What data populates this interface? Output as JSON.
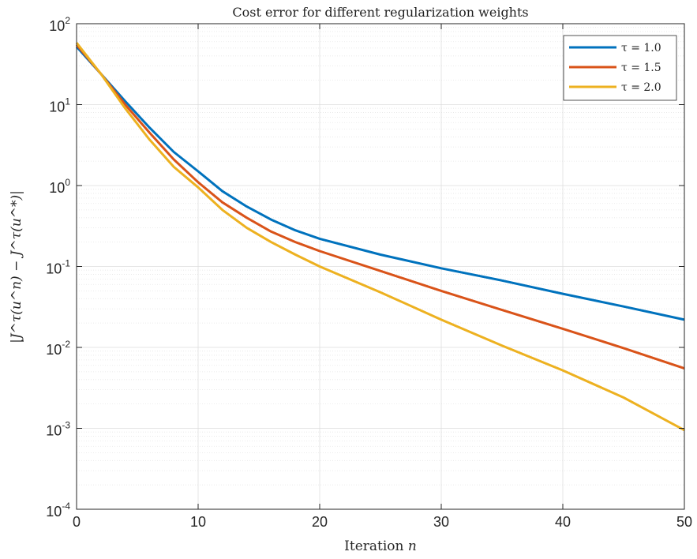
{
  "chart_data": {
    "type": "line",
    "title": "Cost error for different regularization weights",
    "xlabel": "Iteration n",
    "ylabel": "|J^τ(u^n) − J^τ(u^*)|",
    "xlim": [
      0,
      50
    ],
    "ylim": [
      0.0001,
      100
    ],
    "yscale": "log",
    "grid": true,
    "minor_grid": true,
    "legend_position": "top-right",
    "x_ticks": [
      "0",
      "10",
      "20",
      "30",
      "40",
      "50"
    ],
    "y_ticks": [
      {
        "base": "10",
        "exp": "2"
      },
      {
        "base": "10",
        "exp": "1"
      },
      {
        "base": "10",
        "exp": "0"
      },
      {
        "base": "10",
        "exp": "-1"
      },
      {
        "base": "10",
        "exp": "-2"
      },
      {
        "base": "10",
        "exp": "-3"
      },
      {
        "base": "10",
        "exp": "-4"
      }
    ],
    "x": [
      0,
      2,
      4,
      6,
      8,
      10,
      12,
      14,
      16,
      18,
      20,
      25,
      30,
      35,
      40,
      45,
      50
    ],
    "series": [
      {
        "name": "τ = 1.0",
        "color": "#0072BD",
        "values": [
          52,
          24,
          11,
          5.2,
          2.6,
          1.5,
          0.85,
          0.55,
          0.38,
          0.28,
          0.22,
          0.14,
          0.095,
          0.067,
          0.046,
          0.032,
          0.022
        ]
      },
      {
        "name": "τ = 1.5",
        "color": "#D95319",
        "values": [
          55,
          24,
          10,
          4.5,
          2.1,
          1.1,
          0.62,
          0.4,
          0.27,
          0.2,
          0.155,
          0.088,
          0.05,
          0.029,
          0.017,
          0.0098,
          0.0055
        ]
      },
      {
        "name": "τ = 2.0",
        "color": "#EDB120",
        "values": [
          58,
          24,
          9.0,
          3.7,
          1.7,
          0.95,
          0.5,
          0.3,
          0.2,
          0.14,
          0.1,
          0.048,
          0.022,
          0.0105,
          0.0052,
          0.0024,
          0.00095
        ]
      }
    ]
  }
}
